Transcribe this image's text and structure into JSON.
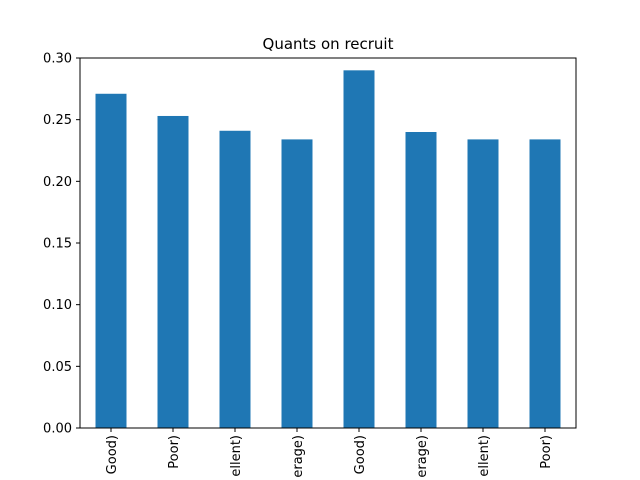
{
  "chart_data": {
    "type": "bar",
    "title": "Quants on recruit",
    "xlabel": "",
    "ylabel": "",
    "categories": [
      "Good)",
      "Poor)",
      "ellent)",
      "erage)",
      "Good)",
      "erage)",
      "ellent)",
      "Poor)"
    ],
    "values": [
      0.271,
      0.253,
      0.241,
      0.234,
      0.29,
      0.24,
      0.234,
      0.234
    ],
    "ylim": [
      0,
      0.3
    ],
    "yticks": [
      0.0,
      0.05,
      0.1,
      0.15,
      0.2,
      0.25,
      0.3
    ],
    "ytick_labels": [
      "0.00",
      "0.05",
      "0.10",
      "0.15",
      "0.20",
      "0.25",
      "0.30"
    ],
    "grid": false,
    "bar_color": "#1f77b4"
  }
}
